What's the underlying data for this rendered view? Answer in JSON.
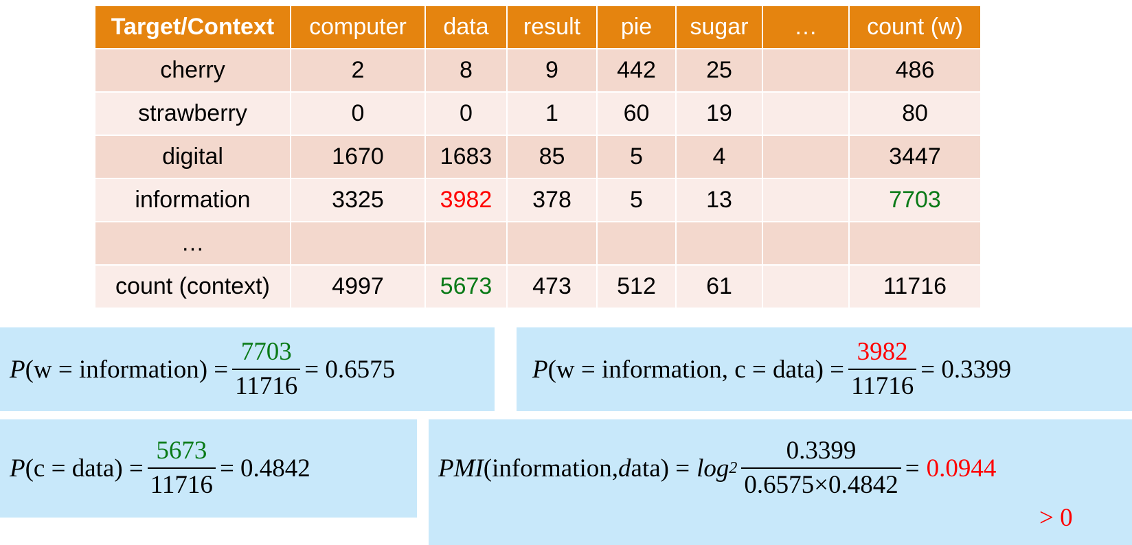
{
  "table": {
    "header": [
      "Target/Context",
      "computer",
      "data",
      "result",
      "pie",
      "sugar",
      "…",
      "count (w)"
    ],
    "rows": [
      [
        "cherry",
        "2",
        "8",
        "9",
        "442",
        "25",
        "",
        "486"
      ],
      [
        "strawberry",
        "0",
        "0",
        "1",
        "60",
        "19",
        "",
        "80"
      ],
      [
        "digital",
        "1670",
        "1683",
        "85",
        "5",
        "4",
        "",
        "3447"
      ],
      [
        "information",
        "3325",
        "3982",
        "378",
        "5",
        "13",
        "",
        "7703"
      ],
      [
        "…",
        "",
        "",
        "",
        "",
        "",
        "",
        ""
      ],
      [
        "count (context)",
        "4997",
        "5673",
        "473",
        "512",
        "61",
        "",
        "11716"
      ]
    ],
    "colors": {
      "header_bg": "#e5840f",
      "row_odd": "#f3d8cd",
      "row_even": "#faece8",
      "red": "#ff0000",
      "green": "#0a7a17"
    }
  },
  "formulas": {
    "pw": {
      "P": "P",
      "lhs": "(w = information) =",
      "num": "7703",
      "den": "11716",
      "result": "= 0.6575"
    },
    "pwc": {
      "P": "P",
      "lhs": "(w = information, c = data) =",
      "num": "3982",
      "den": "11716",
      "result": "= 0.3399"
    },
    "pc": {
      "P": "P",
      "lhs": "(c = data) =",
      "num": "5673",
      "den": "11716",
      "result": "= 0.4842"
    },
    "pmi": {
      "PMI": "PMI",
      "lhs_a": "(information, ",
      "lhs_d": "d",
      "lhs_b": "ata) =",
      "log": "log",
      "base": "2",
      "num": "0.3399",
      "den": "0.6575×0.4842",
      "eq": "=",
      "result": "0.0944",
      "note": "> 0"
    }
  }
}
